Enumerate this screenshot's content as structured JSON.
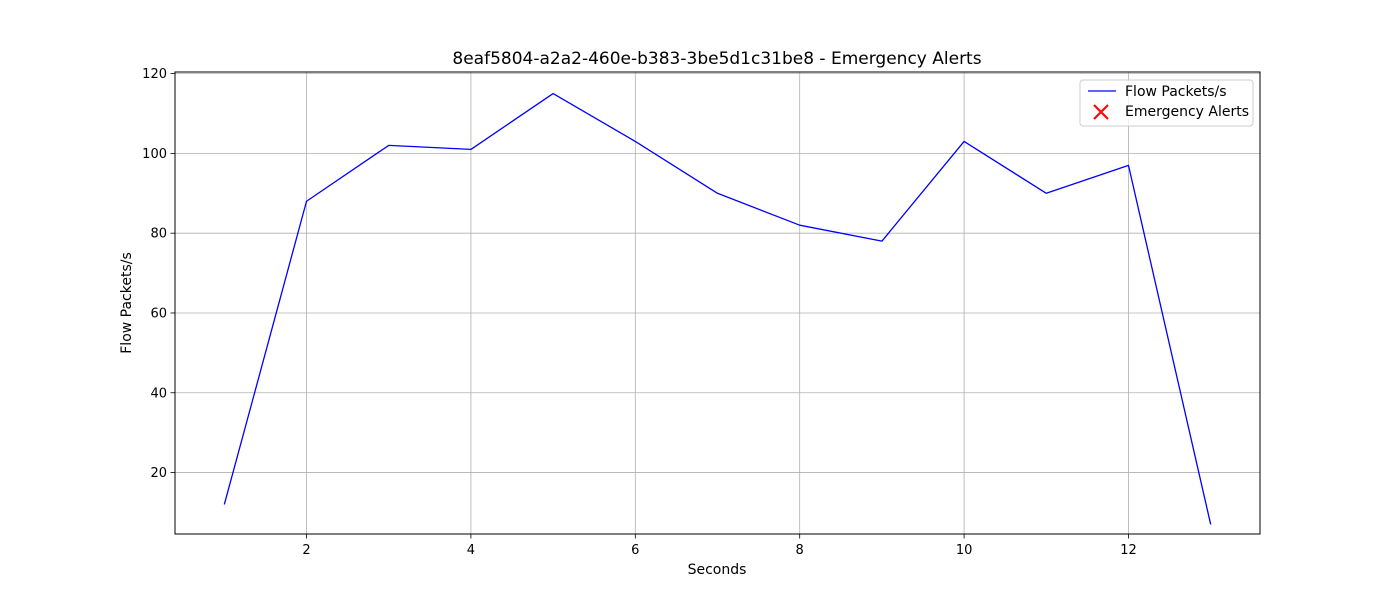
{
  "chart_data": {
    "type": "line",
    "title": "8eaf5804-a2a2-460e-b383-3be5d1c31be8 - Emergency Alerts",
    "xlabel": "Seconds",
    "ylabel": "Flow Packets/s",
    "xlim": [
      0.4,
      13.6
    ],
    "ylim": [
      4.6,
      120.4
    ],
    "xticks": [
      2,
      4,
      6,
      8,
      10,
      12
    ],
    "yticks": [
      20,
      40,
      60,
      80,
      100,
      120
    ],
    "grid": true,
    "legend_position": "top-right",
    "series": [
      {
        "name": "Flow Packets/s",
        "color": "#0000ff",
        "marker": "none",
        "x": [
          1,
          2,
          3,
          4,
          5,
          6,
          7,
          8,
          9,
          10,
          11,
          12,
          13
        ],
        "y": [
          12,
          88,
          102,
          101,
          115,
          103,
          90,
          82,
          78,
          103,
          90,
          97,
          7
        ]
      },
      {
        "name": "Emergency Alerts",
        "color": "#ff0000",
        "marker": "x",
        "x": [],
        "y": []
      }
    ]
  }
}
